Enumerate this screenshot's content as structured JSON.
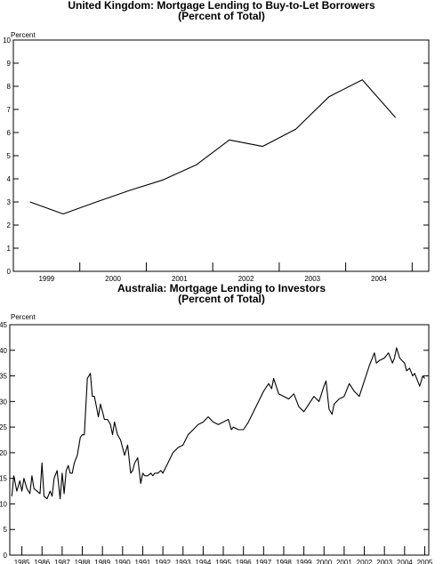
{
  "chart_data": [
    {
      "type": "line",
      "title": "United Kingdom: Mortgage Lending to Buy-to-Let Borrowers",
      "subtitle": "(Percent of Total)",
      "ylabel": "Percent",
      "ylim": [
        0,
        10
      ],
      "yticks": [
        0,
        1,
        2,
        3,
        4,
        5,
        6,
        7,
        8,
        9,
        10
      ],
      "xlim": [
        1998.5,
        2004.75
      ],
      "xboundaries": [
        1999.5,
        2000.5,
        2001.5,
        2002.5,
        2003.5,
        2004.5
      ],
      "xticklabels": [
        "1999",
        "2000",
        "2001",
        "2002",
        "2003",
        "2004"
      ],
      "grid": false,
      "series": [
        {
          "x": [
            1998.75,
            1999.25,
            1999.75,
            2000.25,
            2000.75,
            2001.25,
            2001.75,
            2002.25,
            2002.75,
            2003.25,
            2003.75,
            2004.25
          ],
          "values": [
            3.0,
            2.48,
            3.0,
            3.5,
            3.95,
            4.6,
            5.68,
            5.4,
            6.15,
            7.55,
            8.28,
            6.65
          ]
        }
      ]
    },
    {
      "type": "line",
      "title": "Australia: Mortgage Lending to Investors",
      "subtitle": "(Percent of Total)",
      "ylabel": "Percent",
      "ylim": [
        0,
        45
      ],
      "yticks": [
        0,
        5,
        10,
        15,
        20,
        25,
        30,
        35,
        40,
        45
      ],
      "xlim": [
        1984.4,
        2005.2
      ],
      "xboundaries": [
        1985,
        1986,
        1987,
        1988,
        1989,
        1990,
        1991,
        1992,
        1993,
        1994,
        1995,
        1996,
        1997,
        1998,
        1999,
        2000,
        2001,
        2002,
        2003,
        2004,
        2005
      ],
      "xticklabels": [
        "1985",
        "1986",
        "1987",
        "1988",
        "1989",
        "1990",
        "1991",
        "1992",
        "1993",
        "1994",
        "1995",
        "1996",
        "1997",
        "1998",
        "1999",
        "2000",
        "2001",
        "2002",
        "2003",
        "2004",
        "2005"
      ],
      "grid": false,
      "series": [
        {
          "x": [
            1984.5,
            1984.6,
            1984.75,
            1984.9,
            1985.0,
            1985.1,
            1985.25,
            1985.4,
            1985.5,
            1985.6,
            1985.75,
            1985.9,
            1986.0,
            1986.1,
            1986.25,
            1986.4,
            1986.5,
            1986.6,
            1986.75,
            1986.9,
            1987.0,
            1987.1,
            1987.2,
            1987.3,
            1987.4,
            1987.5,
            1987.6,
            1987.75,
            1987.9,
            1988.0,
            1988.1,
            1988.25,
            1988.4,
            1988.5,
            1988.6,
            1988.7,
            1988.8,
            1988.9,
            1989.0,
            1989.1,
            1989.25,
            1989.4,
            1989.5,
            1989.6,
            1989.75,
            1989.9,
            1990.0,
            1990.1,
            1990.25,
            1990.4,
            1990.5,
            1990.6,
            1990.75,
            1990.9,
            1991.0,
            1991.1,
            1991.25,
            1991.4,
            1991.5,
            1991.6,
            1991.75,
            1991.9,
            1992.0,
            1992.25,
            1992.5,
            1992.75,
            1993.0,
            1993.25,
            1993.5,
            1993.75,
            1994.0,
            1994.25,
            1994.5,
            1994.75,
            1995.0,
            1995.25,
            1995.4,
            1995.5,
            1995.75,
            1996.0,
            1996.25,
            1996.5,
            1996.75,
            1997.0,
            1997.25,
            1997.4,
            1997.5,
            1997.75,
            1998.0,
            1998.25,
            1998.5,
            1998.75,
            1999.0,
            1999.25,
            1999.5,
            1999.75,
            2000.0,
            2000.1,
            2000.25,
            2000.4,
            2000.5,
            2000.75,
            2001.0,
            2001.25,
            2001.5,
            2001.75,
            2002.0,
            2002.25,
            2002.4,
            2002.5,
            2002.6,
            2002.75,
            2003.0,
            2003.2,
            2003.4,
            2003.5,
            2003.6,
            2003.75,
            2004.0,
            2004.1,
            2004.25,
            2004.4,
            2004.5,
            2004.6,
            2004.75,
            2004.9,
            2005.0
          ],
          "values": [
            11.5,
            15.5,
            12.5,
            14.5,
            12.5,
            15.0,
            13.0,
            12.0,
            15.5,
            13.0,
            12.5,
            12.0,
            18.0,
            11.5,
            11.0,
            12.5,
            11.5,
            15.0,
            16.5,
            11.0,
            16.0,
            12.0,
            16.5,
            17.5,
            16.0,
            16.0,
            18.0,
            19.5,
            23.0,
            23.5,
            23.5,
            34.5,
            35.5,
            31.0,
            31.0,
            29.0,
            27.0,
            29.5,
            28.0,
            26.5,
            26.5,
            25.5,
            23.5,
            26.0,
            23.5,
            22.5,
            21.0,
            19.5,
            21.5,
            16.0,
            16.5,
            18.0,
            19.0,
            14.0,
            16.0,
            15.5,
            15.5,
            16.0,
            15.5,
            16.0,
            16.0,
            16.5,
            16.0,
            18.0,
            20.0,
            21.0,
            21.5,
            23.5,
            24.5,
            25.5,
            26.0,
            27.0,
            26.0,
            25.5,
            26.0,
            26.5,
            24.5,
            25.0,
            24.5,
            24.5,
            26.0,
            28.0,
            30.0,
            32.0,
            33.5,
            32.5,
            34.5,
            31.5,
            31.0,
            30.5,
            31.5,
            29.0,
            28.0,
            29.5,
            31.0,
            30.0,
            33.0,
            34.0,
            28.5,
            27.5,
            29.5,
            30.5,
            31.0,
            33.5,
            32.0,
            31.0,
            34.0,
            37.0,
            38.5,
            39.5,
            37.5,
            38.0,
            38.5,
            39.5,
            37.5,
            38.5,
            40.5,
            38.5,
            37.5,
            36.0,
            36.5,
            35.0,
            35.5,
            34.5,
            33.0,
            35.0,
            34.5
          ]
        }
      ]
    }
  ]
}
